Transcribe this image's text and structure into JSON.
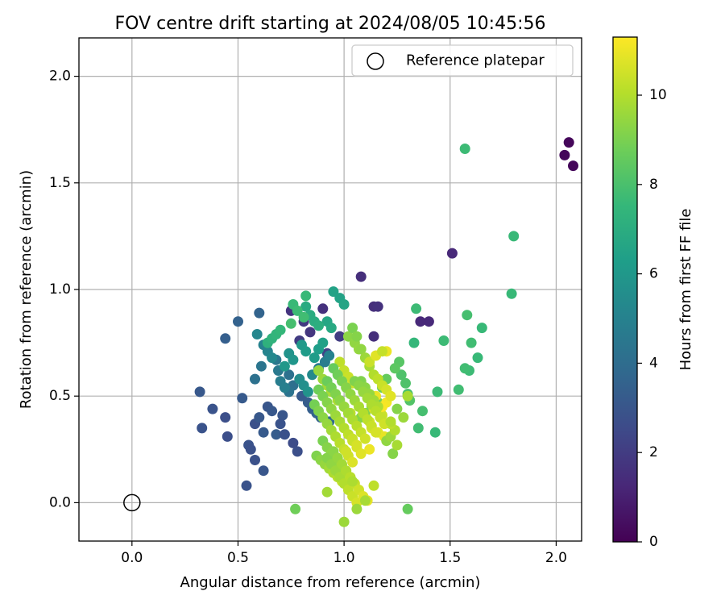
{
  "chart_data": {
    "type": "scatter",
    "title": "FOV centre drift starting at 2024/08/05 10:45:56",
    "xlabel": "Angular distance from reference (arcmin)",
    "ylabel": "Rotation from reference (arcmin)",
    "xlim": [
      -0.25,
      2.12
    ],
    "ylim": [
      -0.18,
      2.18
    ],
    "x_ticks": [
      0.0,
      0.5,
      1.0,
      1.5,
      2.0
    ],
    "x_tick_labels": [
      "0.0",
      "0.5",
      "1.0",
      "1.5",
      "2.0"
    ],
    "y_ticks": [
      0.0,
      0.5,
      1.0,
      1.5,
      2.0
    ],
    "y_tick_labels": [
      "0.0",
      "0.5",
      "1.0",
      "1.5",
      "2.0"
    ],
    "grid": true,
    "legend": {
      "position": "top-right",
      "entries": [
        "Reference platepar"
      ]
    },
    "reference_point": {
      "x": 0.0,
      "y": 0.0
    },
    "colorbar": {
      "label": "Hours from first FF file",
      "colormap": "viridis",
      "range": [
        0,
        11.3
      ],
      "ticks": [
        0,
        2,
        4,
        6,
        8,
        10
      ],
      "tick_labels": [
        "0",
        "2",
        "4",
        "6",
        "8",
        "10"
      ]
    },
    "series": [
      {
        "x": [
          2.06,
          2.04,
          2.08,
          1.51,
          1.14,
          1.08,
          1.36,
          1.4,
          1.14,
          1.16,
          0.9,
          0.75,
          0.81,
          0.84,
          0.98,
          0.79,
          0.92,
          0.44,
          0.5,
          0.6,
          0.32,
          0.33,
          0.38,
          0.44,
          0.45,
          0.58,
          0.6,
          0.62,
          0.68,
          0.55,
          0.56,
          0.58,
          0.62,
          0.54,
          0.52,
          0.64,
          0.66,
          0.71,
          0.7,
          0.72,
          0.76,
          0.78,
          0.8,
          0.83,
          0.85,
          0.87,
          0.89,
          0.93,
          0.74,
          0.76,
          0.58,
          0.74,
          0.61,
          0.68,
          0.69,
          0.7,
          0.72,
          0.62,
          0.64,
          0.66,
          0.59,
          0.88,
          0.91,
          0.93,
          0.85,
          0.79,
          0.81,
          0.83,
          0.74,
          0.76,
          0.72,
          0.8,
          0.82,
          0.86,
          0.88,
          0.9,
          0.95,
          0.98,
          1.0,
          0.92,
          0.94,
          0.82,
          0.84,
          0.86,
          0.88,
          0.64,
          0.66,
          0.68,
          0.7,
          0.82,
          0.76,
          0.78,
          0.81,
          0.75,
          1.57,
          1.8,
          1.79,
          1.65,
          1.63,
          1.59,
          1.57,
          1.58,
          1.6,
          1.54,
          1.47,
          1.44,
          1.43,
          1.34,
          1.33,
          1.35,
          1.37,
          1.3,
          1.29,
          1.27,
          1.31,
          1.26,
          1.24,
          1.2,
          1.18,
          1.16,
          1.13,
          1.1,
          1.08,
          1.02,
          1.05,
          1.07,
          0.88,
          0.9,
          0.92,
          0.94,
          0.97,
          1.0,
          1.03,
          0.98,
          1.0,
          1.02,
          1.04,
          1.12,
          1.13,
          1.16,
          1.19,
          1.12,
          1.3,
          1.23,
          1.2,
          1.22,
          1.25,
          1.24,
          1.22,
          1.18,
          1.14,
          1.1,
          1.15,
          1.2,
          1.18,
          1.04,
          1.06,
          1.08,
          1.1,
          1.12,
          1.14,
          1.16,
          1.18,
          1.2,
          1.22,
          1.08,
          1.1,
          1.12,
          1.14,
          1.16,
          1.05,
          1.07,
          1.09,
          1.11,
          1.13,
          1.15,
          1.17,
          1.19,
          0.95,
          0.97,
          0.99,
          1.01,
          1.03,
          1.05,
          1.07,
          1.09,
          1.11,
          1.13,
          1.15,
          0.92,
          0.94,
          0.96,
          0.98,
          1.0,
          1.02,
          1.04,
          1.06,
          1.08,
          1.1,
          0.88,
          0.9,
          0.92,
          0.94,
          0.96,
          0.98,
          1.0,
          1.02,
          1.04,
          1.06,
          1.08,
          0.86,
          0.88,
          0.9,
          0.92,
          0.94,
          0.96,
          0.98,
          1.0,
          1.02,
          1.04,
          0.9,
          0.92,
          0.94,
          0.96,
          0.98,
          1.0,
          1.02,
          1.04,
          1.06,
          0.87,
          0.89,
          0.91,
          0.93,
          0.95,
          0.97,
          0.99,
          1.01,
          0.92,
          0.94,
          0.96,
          0.98,
          1.0,
          1.02,
          1.04,
          1.06,
          0.95,
          0.97,
          0.99,
          1.01,
          1.03,
          1.05,
          1.07,
          1.09,
          1.11,
          1.0,
          1.04,
          1.12,
          1.15,
          1.2,
          1.18,
          1.25,
          1.28,
          1.3,
          1.22,
          0.92,
          0.77,
          1.06,
          1.1,
          1.14
        ],
        "y": [
          1.69,
          1.63,
          1.58,
          1.17,
          0.92,
          1.06,
          0.85,
          0.85,
          0.78,
          0.92,
          0.91,
          0.9,
          0.85,
          0.8,
          0.78,
          0.76,
          0.7,
          0.77,
          0.85,
          0.89,
          0.52,
          0.35,
          0.44,
          0.4,
          0.31,
          0.37,
          0.4,
          0.33,
          0.32,
          0.27,
          0.25,
          0.2,
          0.15,
          0.08,
          0.49,
          0.45,
          0.43,
          0.41,
          0.37,
          0.32,
          0.28,
          0.24,
          0.5,
          0.47,
          0.44,
          0.42,
          0.4,
          0.38,
          0.6,
          0.55,
          0.58,
          0.52,
          0.64,
          0.67,
          0.62,
          0.57,
          0.54,
          0.74,
          0.71,
          0.68,
          0.79,
          0.63,
          0.66,
          0.69,
          0.6,
          0.58,
          0.55,
          0.52,
          0.7,
          0.67,
          0.64,
          0.74,
          0.71,
          0.68,
          0.72,
          0.75,
          0.99,
          0.96,
          0.93,
          0.85,
          0.82,
          0.92,
          0.88,
          0.85,
          0.83,
          0.75,
          0.77,
          0.79,
          0.81,
          0.97,
          0.93,
          0.9,
          0.87,
          0.84,
          1.66,
          1.25,
          0.98,
          0.82,
          0.68,
          0.62,
          0.63,
          0.88,
          0.75,
          0.53,
          0.76,
          0.52,
          0.33,
          0.91,
          0.75,
          0.35,
          0.43,
          0.51,
          0.56,
          0.6,
          0.48,
          0.66,
          0.63,
          0.58,
          0.54,
          0.47,
          0.45,
          0.42,
          0.4,
          0.78,
          0.75,
          0.72,
          0.62,
          0.58,
          0.55,
          0.52,
          0.48,
          0.45,
          0.42,
          0.66,
          0.62,
          0.59,
          0.56,
          0.38,
          0.35,
          0.33,
          0.31,
          0.25,
          -0.03,
          0.23,
          0.29,
          0.31,
          0.27,
          0.34,
          0.37,
          0.41,
          0.44,
          0.52,
          0.5,
          0.47,
          0.45,
          0.82,
          0.78,
          0.72,
          0.68,
          0.64,
          0.6,
          0.58,
          0.55,
          0.53,
          0.5,
          0.57,
          0.54,
          0.51,
          0.48,
          0.45,
          0.57,
          0.55,
          0.52,
          0.49,
          0.46,
          0.43,
          0.4,
          0.37,
          0.63,
          0.6,
          0.57,
          0.54,
          0.51,
          0.48,
          0.45,
          0.42,
          0.39,
          0.36,
          0.33,
          0.57,
          0.54,
          0.51,
          0.48,
          0.45,
          0.42,
          0.39,
          0.36,
          0.33,
          0.3,
          0.53,
          0.5,
          0.47,
          0.44,
          0.41,
          0.38,
          0.35,
          0.32,
          0.29,
          0.26,
          0.23,
          0.46,
          0.43,
          0.4,
          0.37,
          0.34,
          0.31,
          0.28,
          0.25,
          0.22,
          0.19,
          0.29,
          0.26,
          0.23,
          0.2,
          0.17,
          0.14,
          0.11,
          0.3,
          0.27,
          0.22,
          0.2,
          0.18,
          0.16,
          0.14,
          0.12,
          0.1,
          0.24,
          0.21,
          0.18,
          0.15,
          0.12,
          0.09,
          0.06,
          0.03,
          0.0,
          0.24,
          0.21,
          0.18,
          0.15,
          0.12,
          0.09,
          0.06,
          0.03,
          0.01,
          -0.09,
          0.1,
          0.66,
          0.69,
          0.71,
          0.71,
          0.44,
          0.4,
          0.5,
          0.38,
          0.05,
          -0.03,
          -0.03,
          0.01,
          0.08
        ],
        "hours": [
          0.2,
          0.2,
          0.2,
          1.3,
          1.5,
          1.5,
          1.3,
          1.3,
          1.5,
          1.6,
          1.6,
          1.7,
          1.9,
          1.8,
          2.0,
          2.0,
          2.2,
          3.4,
          3.5,
          3.6,
          3.1,
          2.9,
          2.9,
          2.7,
          2.7,
          2.8,
          3.1,
          3.2,
          3.3,
          2.9,
          2.8,
          2.8,
          3.0,
          2.9,
          3.2,
          3.0,
          3.1,
          3.0,
          2.9,
          2.8,
          2.6,
          2.7,
          3.2,
          3.3,
          3.4,
          3.6,
          3.6,
          3.9,
          4.2,
          4.1,
          4.2,
          4.3,
          4.4,
          4.5,
          4.6,
          4.8,
          4.9,
          5.0,
          5.1,
          5.3,
          5.2,
          4.7,
          4.8,
          5.0,
          5.4,
          5.5,
          5.6,
          5.8,
          5.8,
          5.9,
          6.0,
          6.1,
          6.2,
          6.2,
          6.3,
          6.4,
          6.5,
          6.5,
          6.6,
          6.7,
          6.8,
          6.9,
          7.0,
          7.0,
          7.1,
          7.2,
          7.3,
          7.4,
          7.5,
          7.6,
          7.6,
          7.7,
          7.8,
          7.9,
          7.7,
          7.6,
          7.6,
          7.6,
          7.6,
          7.7,
          7.8,
          7.9,
          7.8,
          7.8,
          7.7,
          7.7,
          7.6,
          7.7,
          7.5,
          7.8,
          7.9,
          8.0,
          8.1,
          8.1,
          8.2,
          8.3,
          8.4,
          8.6,
          8.7,
          8.9,
          9.0,
          9.1,
          9.2,
          9.3,
          9.4,
          9.5,
          9.5,
          9.6,
          9.7,
          9.8,
          9.9,
          10.0,
          10.1,
          10.2,
          10.3,
          10.4,
          10.5,
          10.6,
          10.7,
          10.8,
          10.9,
          11.0,
          8.6,
          9.2,
          9.4,
          9.6,
          9.8,
          10.0,
          10.2,
          10.4,
          10.6,
          10.8,
          11.0,
          11.1,
          11.2,
          9.0,
          9.2,
          9.4,
          9.6,
          9.8,
          10.0,
          10.2,
          10.4,
          10.6,
          10.8,
          9.1,
          9.3,
          9.5,
          9.7,
          9.9,
          9.1,
          9.3,
          9.5,
          9.7,
          9.9,
          10.1,
          10.3,
          10.5,
          8.6,
          8.8,
          9.0,
          9.2,
          9.4,
          9.6,
          9.8,
          10.0,
          10.2,
          10.4,
          10.6,
          8.7,
          8.9,
          9.1,
          9.3,
          9.5,
          9.7,
          9.9,
          10.1,
          10.3,
          10.5,
          8.8,
          9.0,
          9.2,
          9.4,
          9.6,
          9.8,
          10.0,
          10.2,
          10.4,
          10.6,
          10.8,
          8.9,
          9.1,
          9.3,
          9.5,
          9.7,
          9.9,
          10.1,
          10.3,
          10.5,
          10.7,
          9.0,
          9.2,
          9.4,
          9.6,
          9.8,
          10.0,
          10.2,
          10.4,
          10.6,
          9.1,
          9.3,
          9.5,
          9.7,
          9.9,
          10.1,
          10.3,
          10.5,
          9.2,
          9.4,
          9.6,
          9.8,
          10.0,
          10.2,
          10.4,
          10.6,
          9.3,
          9.5,
          9.7,
          9.9,
          10.1,
          10.3,
          10.5,
          10.7,
          10.9,
          9.6,
          9.9,
          10.4,
          10.8,
          11.0,
          10.3,
          9.2,
          9.6,
          9.8,
          10.0,
          9.7,
          8.8,
          9.6,
          9.8,
          10.2
        ]
      }
    ]
  },
  "colors": {
    "axes": "#000000",
    "grid": "#b0b0b0",
    "legend_border": "#cccccc"
  }
}
